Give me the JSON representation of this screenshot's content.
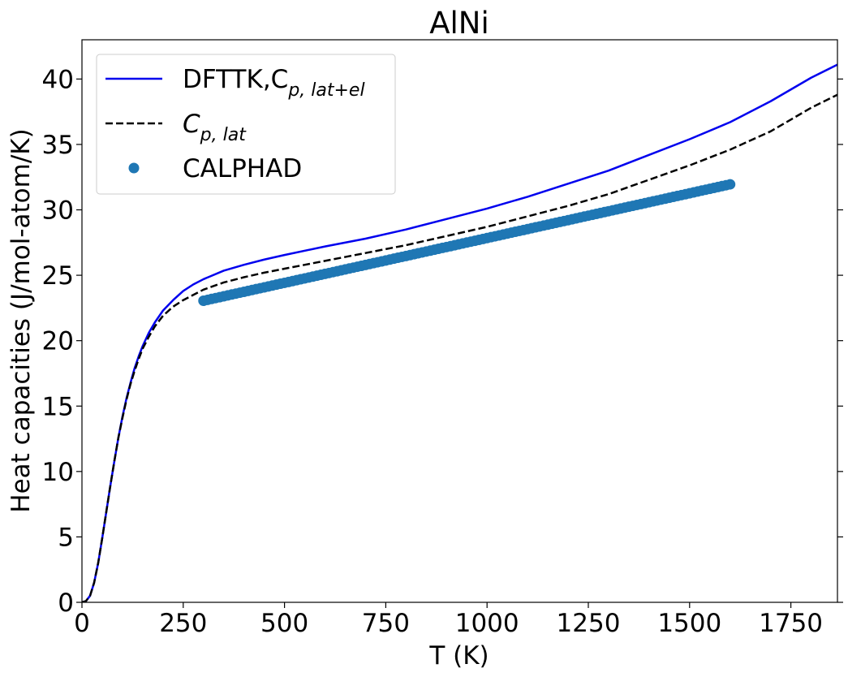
{
  "chart_data": {
    "type": "line",
    "title": "AlNi",
    "xlabel": "T (K)",
    "ylabel": "Heat capacities (J/mol-atom/K)",
    "xlim": [
      0,
      1865
    ],
    "ylim": [
      0,
      43
    ],
    "xticks": [
      0,
      250,
      500,
      750,
      1000,
      1250,
      1500,
      1750
    ],
    "yticks": [
      0,
      5,
      10,
      15,
      20,
      25,
      30,
      35,
      40
    ],
    "grid": false,
    "legend_position": "upper-left",
    "series": [
      {
        "id": "dfttk",
        "name": "DFTTK,C",
        "name_sub": "p, lat+el",
        "style": "solid",
        "color": "#0000ee",
        "x": [
          0,
          10,
          20,
          30,
          40,
          50,
          60,
          70,
          80,
          90,
          100,
          110,
          120,
          130,
          140,
          150,
          165,
          180,
          200,
          225,
          250,
          275,
          300,
          350,
          400,
          450,
          500,
          600,
          700,
          800,
          900,
          1000,
          1100,
          1200,
          1300,
          1400,
          1500,
          1600,
          1700,
          1800,
          1865
        ],
        "y": [
          0,
          0.1,
          0.5,
          1.5,
          3.0,
          4.9,
          6.9,
          8.9,
          10.8,
          12.6,
          14.2,
          15.6,
          16.8,
          17.9,
          18.8,
          19.6,
          20.6,
          21.4,
          22.3,
          23.1,
          23.8,
          24.3,
          24.7,
          25.35,
          25.8,
          26.2,
          26.55,
          27.2,
          27.8,
          28.5,
          29.3,
          30.1,
          31.0,
          32.0,
          33.0,
          34.2,
          35.4,
          36.7,
          38.3,
          40.1,
          41.1
        ]
      },
      {
        "id": "cplat",
        "name": "C",
        "name_sub": "p, lat",
        "style": "dashed",
        "color": "#000000",
        "x": [
          0,
          10,
          20,
          30,
          40,
          50,
          60,
          70,
          80,
          90,
          100,
          110,
          120,
          130,
          140,
          150,
          165,
          180,
          200,
          225,
          250,
          275,
          300,
          350,
          400,
          450,
          500,
          600,
          700,
          800,
          900,
          1000,
          1100,
          1200,
          1300,
          1400,
          1500,
          1600,
          1700,
          1800,
          1865
        ],
        "y": [
          0,
          0.1,
          0.5,
          1.5,
          3.0,
          4.9,
          6.9,
          8.9,
          10.8,
          12.6,
          14.1,
          15.5,
          16.7,
          17.7,
          18.6,
          19.4,
          20.3,
          21.1,
          21.9,
          22.6,
          23.1,
          23.5,
          23.9,
          24.45,
          24.85,
          25.2,
          25.5,
          26.1,
          26.7,
          27.3,
          28.0,
          28.7,
          29.5,
          30.3,
          31.2,
          32.3,
          33.4,
          34.6,
          36.0,
          37.8,
          38.8
        ]
      },
      {
        "id": "calphad",
        "name": "CALPHAD",
        "style": "markers",
        "color": "#1f77b4",
        "x_start": 300,
        "x_end": 1600,
        "x_step": 10,
        "y_start": 23.05,
        "y_end": 31.95
      }
    ]
  }
}
